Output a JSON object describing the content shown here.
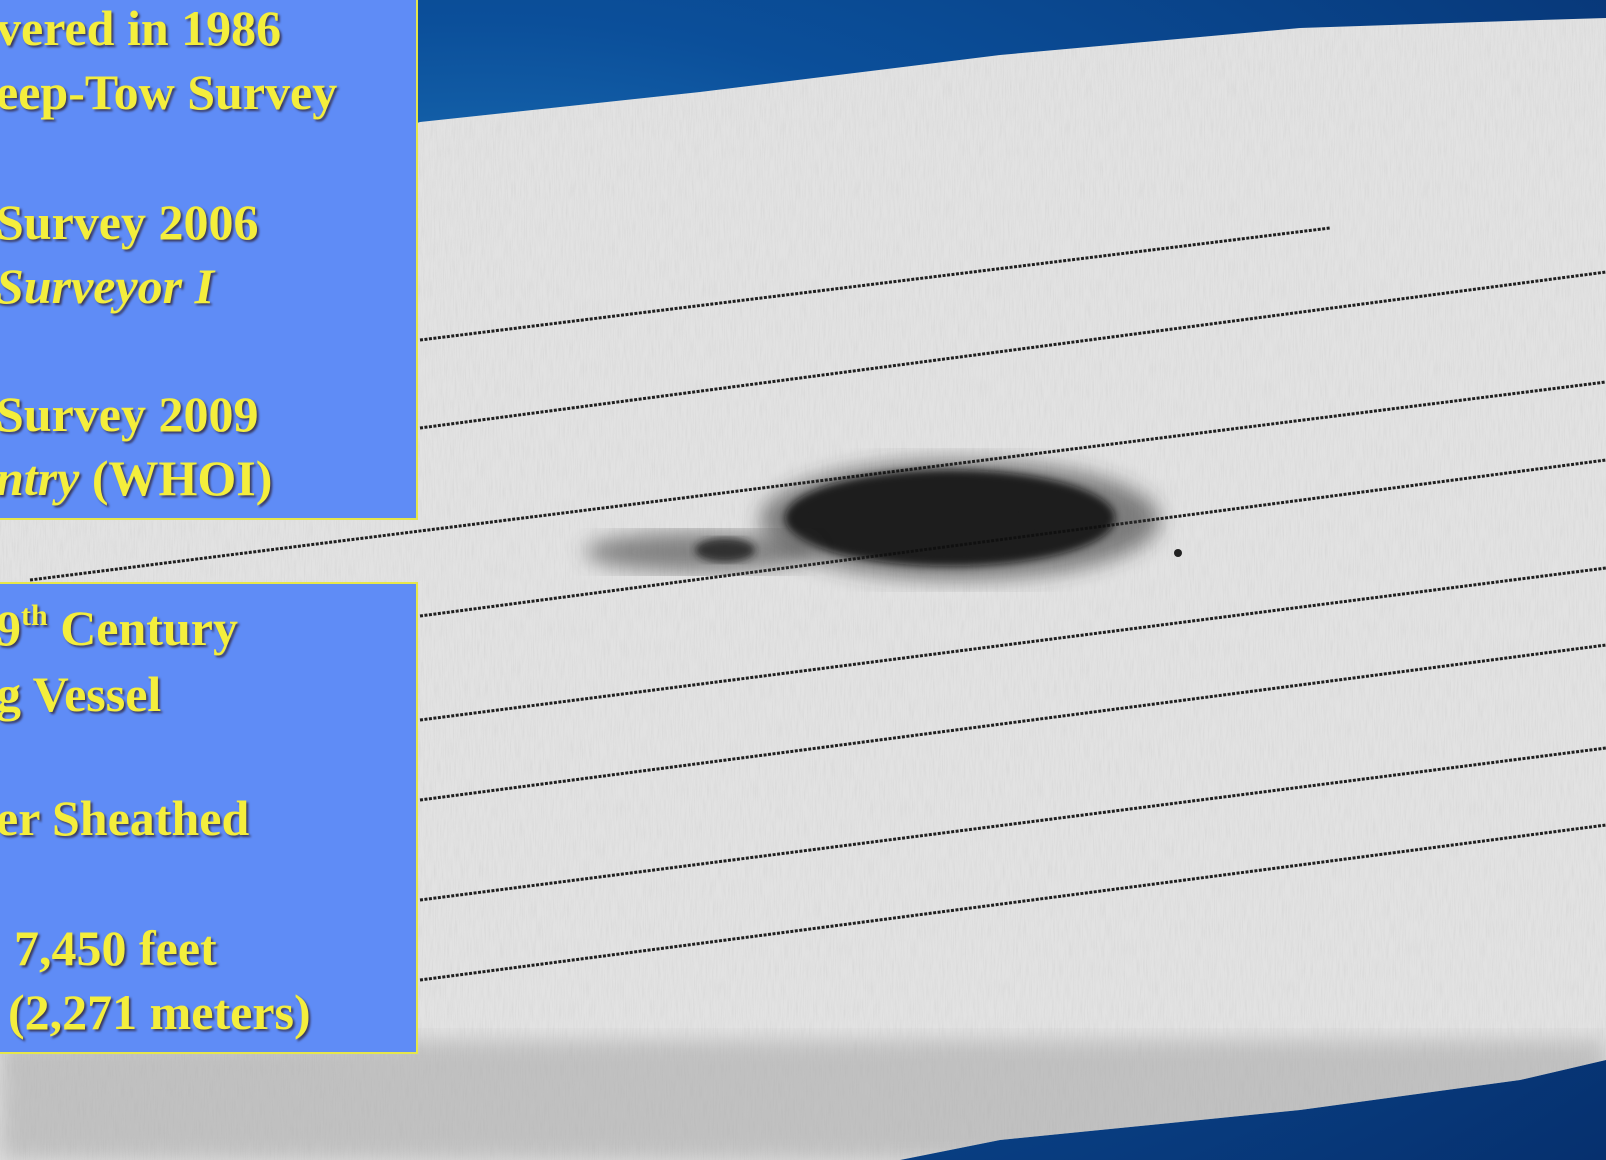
{
  "top_panel": {
    "line1": "vered in 1986",
    "line2": "eep-Tow Survey",
    "line3": "Survey 2006",
    "line4": "Surveyor I",
    "line5": "Survey 2009",
    "line6_italic": "ntry",
    "line6_rest": " (WHOI)"
  },
  "bottom_panel": {
    "line1_num": "9",
    "line1_sup": "th",
    "line1_rest": " Century",
    "line2": "g Vessel",
    "line3": "er Sheathed",
    "line4": "7,450 feet",
    "line5": "(2,271 meters)"
  },
  "colors": {
    "panel_bg": "#5f8cf6",
    "panel_border": "#e6e64a",
    "text": "#f4ee3c",
    "background": "#0b4f9a"
  }
}
